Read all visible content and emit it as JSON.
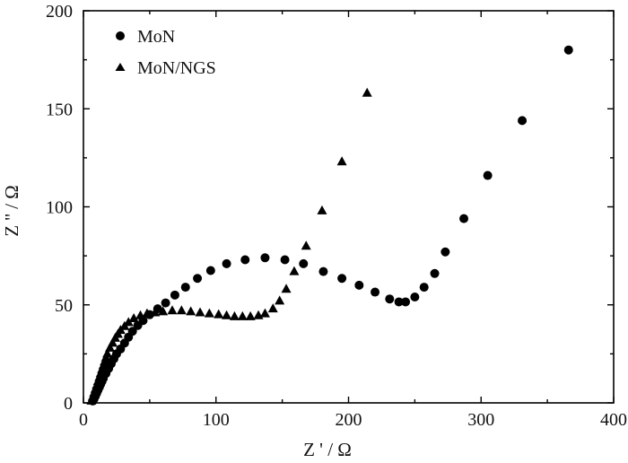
{
  "chart_data": {
    "type": "scatter",
    "title": "",
    "xlabel": "Z ' / Ω",
    "ylabel": "Z '' / Ω",
    "xlim": [
      0,
      400
    ],
    "ylim": [
      0,
      200
    ],
    "xticks": [
      "0",
      "100",
      "200",
      "300",
      "400"
    ],
    "yticks": [
      "0",
      "50",
      "100",
      "150",
      "200"
    ],
    "grid": false,
    "legend": "top-left",
    "series": [
      {
        "name": "MoN",
        "marker": "circle",
        "color": "#000000",
        "points": [
          [
            7,
            1
          ],
          [
            8,
            2
          ],
          [
            9,
            3.5
          ],
          [
            10,
            5
          ],
          [
            11,
            6.5
          ],
          [
            12,
            8
          ],
          [
            13,
            9.5
          ],
          [
            14,
            11
          ],
          [
            15,
            12.5
          ],
          [
            17,
            15
          ],
          [
            19,
            17.5
          ],
          [
            21,
            20
          ],
          [
            23,
            22.5
          ],
          [
            25,
            25
          ],
          [
            28,
            27.5
          ],
          [
            31,
            30.5
          ],
          [
            34,
            33.5
          ],
          [
            37,
            36.5
          ],
          [
            41,
            39.5
          ],
          [
            45,
            42
          ],
          [
            50,
            45
          ],
          [
            56,
            48
          ],
          [
            62,
            51
          ],
          [
            69,
            55
          ],
          [
            77,
            59
          ],
          [
            86,
            63.5
          ],
          [
            96,
            67.5
          ],
          [
            108,
            71
          ],
          [
            122,
            73
          ],
          [
            137,
            74
          ],
          [
            152,
            73
          ],
          [
            166,
            71
          ],
          [
            181,
            67
          ],
          [
            195,
            63.5
          ],
          [
            208,
            60
          ],
          [
            220,
            56.5
          ],
          [
            231,
            53
          ],
          [
            238,
            51.5
          ],
          [
            243,
            51.5
          ],
          [
            250,
            54
          ],
          [
            257,
            59
          ],
          [
            265,
            66
          ],
          [
            273,
            77
          ],
          [
            287,
            94
          ],
          [
            305,
            116
          ],
          [
            331,
            144
          ],
          [
            366,
            180
          ]
        ]
      },
      {
        "name": "MoN/NGS",
        "marker": "triangle",
        "color": "#000000",
        "points": [
          [
            6,
            1
          ],
          [
            7,
            3
          ],
          [
            8,
            5
          ],
          [
            9,
            7
          ],
          [
            10,
            9
          ],
          [
            11,
            11
          ],
          [
            12,
            13
          ],
          [
            13,
            15
          ],
          [
            14,
            17
          ],
          [
            15,
            19
          ],
          [
            16,
            21
          ],
          [
            17,
            23
          ],
          [
            18,
            25
          ],
          [
            20,
            28
          ],
          [
            22,
            30.5
          ],
          [
            24,
            33
          ],
          [
            26,
            35
          ],
          [
            28,
            37
          ],
          [
            31,
            39
          ],
          [
            34,
            41
          ],
          [
            38,
            43
          ],
          [
            43,
            44.5
          ],
          [
            48,
            45.5
          ],
          [
            54,
            46
          ],
          [
            60,
            46.5
          ],
          [
            67,
            47
          ],
          [
            74,
            47
          ],
          [
            81,
            46.5
          ],
          [
            88,
            46
          ],
          [
            95,
            45.5
          ],
          [
            102,
            45
          ],
          [
            108,
            44.5
          ],
          [
            114,
            44
          ],
          [
            120,
            44
          ],
          [
            126,
            44
          ],
          [
            132,
            44.5
          ],
          [
            137,
            45.5
          ],
          [
            143,
            48
          ],
          [
            148,
            52
          ],
          [
            153,
            58
          ],
          [
            159,
            67
          ],
          [
            168,
            80
          ],
          [
            180,
            98
          ],
          [
            195,
            123
          ],
          [
            214,
            158
          ]
        ]
      }
    ]
  }
}
